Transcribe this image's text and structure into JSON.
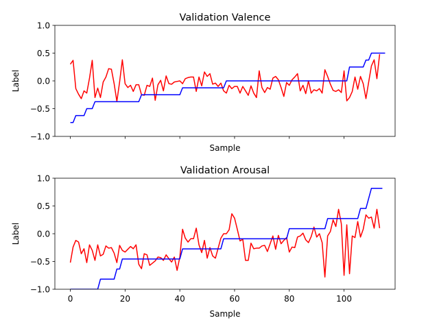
{
  "chart_data": [
    {
      "type": "line",
      "title": "Validation Valence",
      "xlabel": "Sample",
      "ylabel": "Label",
      "xlim": [
        -5.65,
        118.65
      ],
      "ylim": [
        -1.0,
        1.0
      ],
      "xticks": [
        0,
        20,
        40,
        60,
        80,
        100
      ],
      "xtick_labels_visible": false,
      "yticks": [
        -1.0,
        -0.5,
        0.0,
        0.5,
        1.0
      ],
      "ytick_labels": [
        "−1.0",
        "−0.5",
        "0.0",
        "0.5",
        "1.0"
      ],
      "grid": false,
      "legend": "none",
      "series": [
        {
          "color": "#ff0000",
          "x_start": 0,
          "values": [
            0.3,
            0.37,
            -0.14,
            -0.24,
            -0.32,
            -0.18,
            -0.22,
            0.05,
            0.37,
            -0.3,
            -0.13,
            -0.3,
            -0.02,
            0.07,
            0.22,
            0.21,
            -0.05,
            -0.37,
            -0.02,
            0.38,
            -0.05,
            -0.12,
            -0.08,
            -0.19,
            -0.07,
            -0.07,
            -0.25,
            -0.26,
            -0.08,
            -0.1,
            0.05,
            -0.35,
            -0.07,
            0.01,
            -0.18,
            0.09,
            -0.05,
            -0.06,
            -0.02,
            -0.01,
            0.0,
            -0.05,
            0.04,
            0.06,
            0.07,
            0.07,
            -0.19,
            0.07,
            -0.09,
            0.16,
            0.08,
            0.13,
            -0.06,
            -0.04,
            -0.1,
            -0.04,
            -0.18,
            -0.22,
            -0.08,
            -0.14,
            -0.1,
            -0.1,
            -0.22,
            -0.1,
            -0.18,
            -0.26,
            -0.09,
            -0.22,
            -0.3,
            0.18,
            -0.12,
            -0.21,
            -0.12,
            -0.15,
            0.05,
            0.08,
            0.02,
            -0.12,
            -0.28,
            -0.03,
            -0.08,
            0.02,
            0.07,
            0.13,
            -0.18,
            -0.08,
            -0.23,
            0.0,
            -0.22,
            -0.16,
            -0.18,
            -0.14,
            -0.22,
            0.2,
            0.08,
            -0.06,
            -0.17,
            -0.19,
            -0.16,
            -0.21,
            0.18,
            -0.36,
            -0.3,
            -0.19,
            0.07,
            -0.15,
            0.08,
            -0.05,
            -0.32,
            -0.02,
            0.27,
            0.38,
            0.04,
            0.48
          ]
        },
        {
          "color": "#0000ff",
          "x_start": 0,
          "values": [
            -0.75,
            -0.75,
            -0.625,
            -0.625,
            -0.625,
            -0.625,
            -0.5,
            -0.5,
            -0.5,
            -0.375,
            -0.375,
            -0.375,
            -0.375,
            -0.375,
            -0.375,
            -0.375,
            -0.375,
            -0.375,
            -0.375,
            -0.375,
            -0.375,
            -0.375,
            -0.375,
            -0.375,
            -0.375,
            -0.375,
            -0.25,
            -0.25,
            -0.25,
            -0.25,
            -0.25,
            -0.25,
            -0.25,
            -0.25,
            -0.25,
            -0.25,
            -0.25,
            -0.25,
            -0.25,
            -0.25,
            -0.25,
            -0.125,
            -0.125,
            -0.125,
            -0.125,
            -0.125,
            -0.125,
            -0.125,
            -0.125,
            -0.125,
            -0.125,
            -0.125,
            -0.125,
            -0.125,
            -0.125,
            -0.125,
            -0.125,
            0,
            0,
            0,
            0,
            0,
            0,
            0,
            0,
            0,
            0,
            0,
            0,
            0,
            0,
            0,
            0,
            0,
            0,
            0,
            0,
            0,
            0,
            0,
            0,
            0,
            0,
            0,
            0,
            0,
            0,
            0,
            0,
            0,
            0,
            0,
            0,
            0,
            0,
            0,
            0,
            0,
            0,
            0,
            0,
            0,
            0.25,
            0.25,
            0.25,
            0.25,
            0.25,
            0.25,
            0.375,
            0.375,
            0.5,
            0.5,
            0.5,
            0.5,
            0.5,
            0.5
          ]
        }
      ]
    },
    {
      "type": "line",
      "title": "Validation Arousal",
      "xlabel": "Sample",
      "ylabel": "Label",
      "xlim": [
        -5.65,
        118.65
      ],
      "ylim": [
        -1.0,
        1.0
      ],
      "xticks": [
        0,
        20,
        40,
        60,
        80,
        100
      ],
      "xtick_labels": [
        "0",
        "20",
        "40",
        "60",
        "80",
        "100"
      ],
      "yticks": [
        -1.0,
        -0.5,
        0.0,
        0.5,
        1.0
      ],
      "ytick_labels": [
        "−1.0",
        "−0.5",
        "0.0",
        "0.5",
        "1.0"
      ],
      "grid": false,
      "legend": "none",
      "series": [
        {
          "color": "#ff0000",
          "x_start": 0,
          "values": [
            -0.52,
            -0.24,
            -0.12,
            -0.15,
            -0.36,
            -0.27,
            -0.52,
            -0.2,
            -0.3,
            -0.48,
            -0.2,
            -0.4,
            -0.37,
            -0.22,
            -0.26,
            -0.25,
            -0.35,
            -0.52,
            -0.21,
            -0.3,
            -0.33,
            -0.28,
            -0.23,
            -0.27,
            -0.2,
            -0.55,
            -0.63,
            -0.36,
            -0.38,
            -0.57,
            -0.53,
            -0.49,
            -0.42,
            -0.43,
            -0.48,
            -0.38,
            -0.45,
            -0.51,
            -0.42,
            -0.66,
            -0.42,
            0.08,
            -0.08,
            -0.15,
            -0.09,
            -0.09,
            0.1,
            -0.2,
            -0.34,
            -0.12,
            -0.44,
            -0.25,
            -0.4,
            -0.44,
            -0.26,
            -0.08,
            0.0,
            0.0,
            0.07,
            0.36,
            0.28,
            0.08,
            -0.13,
            -0.1,
            -0.48,
            -0.48,
            -0.17,
            -0.27,
            -0.26,
            -0.26,
            -0.22,
            -0.21,
            -0.32,
            -0.18,
            -0.04,
            -0.28,
            -0.03,
            -0.18,
            -0.12,
            -0.07,
            -0.33,
            -0.24,
            -0.25,
            -0.06,
            -0.04,
            0.01,
            -0.11,
            -0.16,
            -0.05,
            0.12,
            -0.06,
            0.0,
            -0.16,
            -0.78,
            -0.04,
            0.04,
            0.25,
            0.13,
            0.44,
            0.18,
            -0.75,
            0.16,
            -0.72,
            -0.04,
            -0.07,
            0.22,
            -0.06,
            0.08,
            0.34,
            0.28,
            0.3,
            0.1,
            0.44,
            0.1
          ]
        },
        {
          "color": "#0000ff",
          "x_start": 0,
          "values": [
            -1,
            -1,
            -1,
            -1,
            -1,
            -1,
            -1,
            -1,
            -1,
            -1,
            -1,
            -0.818,
            -0.818,
            -0.818,
            -0.818,
            -0.818,
            -0.818,
            -0.636,
            -0.636,
            -0.455,
            -0.455,
            -0.455,
            -0.455,
            -0.455,
            -0.455,
            -0.455,
            -0.455,
            -0.455,
            -0.455,
            -0.455,
            -0.455,
            -0.455,
            -0.455,
            -0.455,
            -0.455,
            -0.455,
            -0.455,
            -0.455,
            -0.455,
            -0.455,
            -0.455,
            -0.273,
            -0.273,
            -0.273,
            -0.273,
            -0.273,
            -0.273,
            -0.273,
            -0.273,
            -0.273,
            -0.273,
            -0.273,
            -0.273,
            -0.273,
            -0.273,
            -0.273,
            -0.091,
            -0.091,
            -0.091,
            -0.091,
            -0.091,
            -0.091,
            -0.091,
            -0.091,
            -0.091,
            -0.091,
            -0.091,
            -0.091,
            -0.091,
            -0.091,
            -0.091,
            -0.091,
            -0.091,
            -0.091,
            -0.091,
            -0.091,
            -0.091,
            -0.091,
            -0.091,
            -0.091,
            0.091,
            0.091,
            0.091,
            0.091,
            0.091,
            0.091,
            0.091,
            0.091,
            0.091,
            0.091,
            0.091,
            0.091,
            0.091,
            0.091,
            0.273,
            0.273,
            0.273,
            0.273,
            0.273,
            0.273,
            0.273,
            0.273,
            0.273,
            0.273,
            0.273,
            0.273,
            0.455,
            0.455,
            0.455,
            0.636,
            0.818,
            0.818,
            0.818,
            0.818,
            0.818
          ]
        }
      ]
    }
  ]
}
